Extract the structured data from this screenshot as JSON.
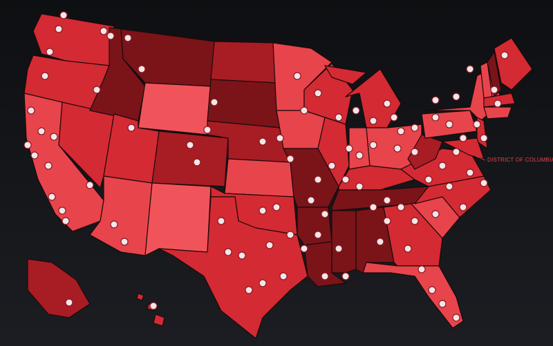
{
  "map": {
    "annotation": "DISTRICT OF COLUMBIA"
  }
}
